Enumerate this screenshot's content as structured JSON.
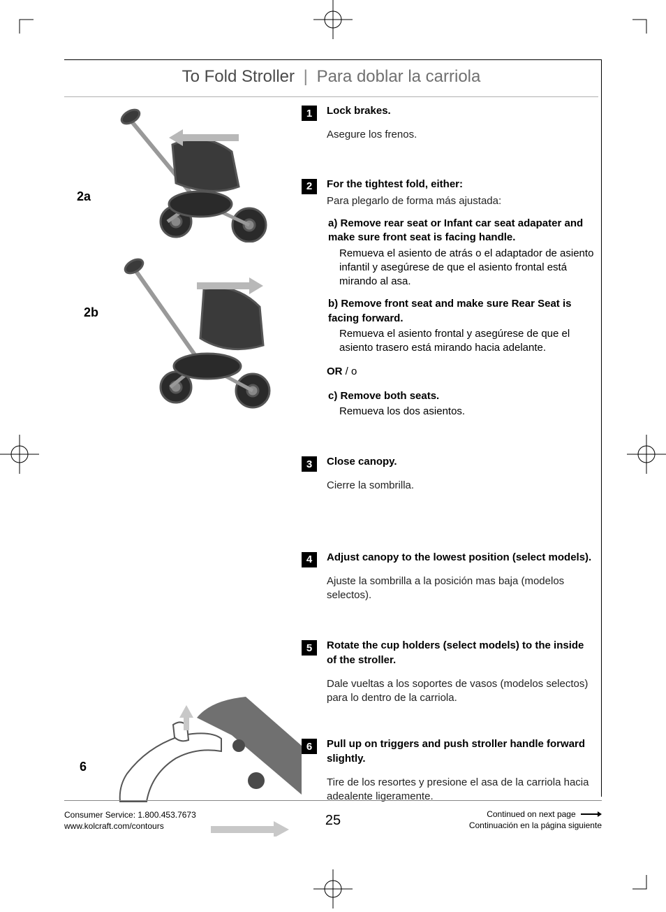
{
  "heading": {
    "en": "To Fold Stroller",
    "sep": "|",
    "es": "Para doblar la carriola"
  },
  "labels": {
    "illus2a": "2a",
    "illus2b": "2b",
    "illus6": "6"
  },
  "steps": [
    {
      "num": "1",
      "bold": "Lock brakes.",
      "plain": "Asegure los frenos.",
      "gap_after": 50
    },
    {
      "num": "2",
      "bold": "For the tightest fold, either:",
      "plain": "Para plegarlo de forma más ajustada:",
      "subs": [
        {
          "label": "a)",
          "text_bold": "Remove rear seat or Infant car seat adapater and make sure front seat is facing handle.",
          "text_plain": "Remueva el asiento de atrás o el adaptador de asiento infantil y asegúrese de que el asiento frontal está mirando al asa."
        },
        {
          "label": "b)",
          "text_bold": "Remove front seat and make sure Rear Seat is facing forward.",
          "text_plain": "Remueva el asiento frontal y asegúrese de que el asiento trasero está mirando hacia adelante."
        }
      ],
      "or": {
        "bold": "OR",
        "plain": " / o"
      },
      "subs2": [
        {
          "label": "c)",
          "text_bold": "Remove both seats.",
          "text_plain": "Remueva los dos asientos."
        }
      ],
      "gap_after": 52
    },
    {
      "num": "3",
      "bold": "Close canopy.",
      "plain": "Cierre la sombrilla.",
      "gap_after": 82
    },
    {
      "num": "4",
      "bold": "Adjust canopy to the lowest position (select models).",
      "plain": "Ajuste la sombrilla a la posición mas baja (modelos selectos).",
      "gap_after": 52
    },
    {
      "num": "5",
      "bold": "Rotate the cup holders (select models) to the inside of the stroller.",
      "plain": "Dale vueltas a los soportes de vasos (modelos selectos) para lo dentro de la carriola.",
      "gap_after": 46
    },
    {
      "num": "6",
      "bold": "Pull up on triggers and push stroller handle forward slightly.",
      "plain": "Tire de los resortes y presione el asa de la carriola hacia adealente ligeramente.",
      "gap_after": 0
    }
  ],
  "footer": {
    "service": "Consumer Service: 1.800.453.7673",
    "url": "www.kolcraft.com/contours",
    "page": "25",
    "cont_en": "Continued on next page",
    "cont_es": "Continuación en la página siguiente"
  },
  "colors": {
    "text": "#000000",
    "subtext": "#222222",
    "heading": "#4a4a4a",
    "heading_es": "#707070",
    "step_badge_bg": "#000000",
    "step_badge_fg": "#ffffff",
    "border": "#000000",
    "heading_rule": "#b0b0b0",
    "illus_bg": "#d8d8d8",
    "crop_stroke": "#000000"
  }
}
